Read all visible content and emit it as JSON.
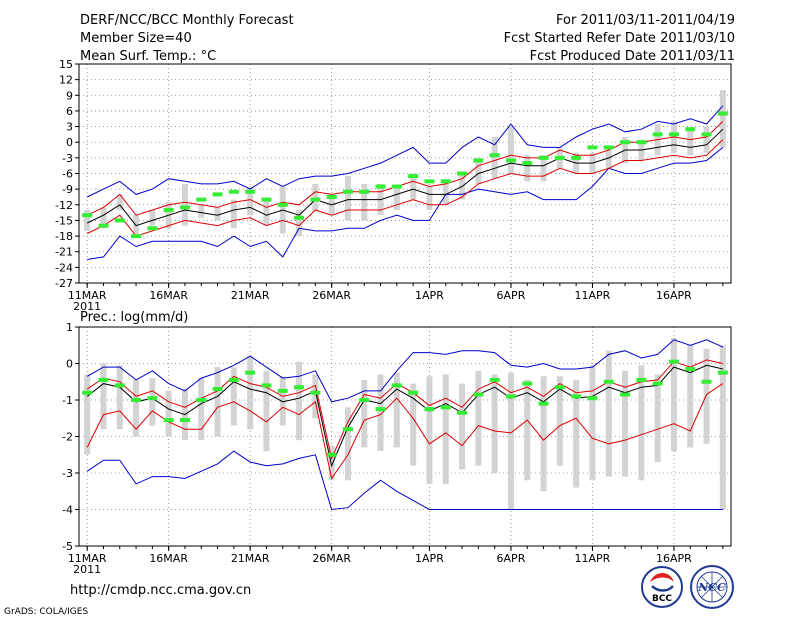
{
  "header": {
    "title": "DERF/NCC/BCC Monthly Forecast",
    "member_size": "Member Size=40",
    "variable": "Mean Surf. Temp.: °C",
    "forecast_range": "For 2011/03/11-2011/04/19",
    "start_date": "Fcst Started Refer Date 2011/03/10",
    "produced_date": "Fcst Produced Date 2011/03/11"
  },
  "footer": {
    "url": "http://cmdp.ncc.cma.gov.cn",
    "credit": "GrADS: COLA/IGES",
    "logo_bcc": "BCC",
    "logo_ncc": "NCC"
  },
  "colors": {
    "mean": "#000000",
    "inner_band": "#dd0000",
    "outer_band": "#0000cc",
    "bar": "#d3d3d3",
    "marker": "#33ee33"
  },
  "chart_data": [
    {
      "type": "bar",
      "title": "Mean Surf. Temp.: °C",
      "x_tick_labels": [
        "11MAR",
        "16MAR",
        "21MAR",
        "26MAR",
        "1APR",
        "6APR",
        "11APR",
        "16APR"
      ],
      "x_tick_days": [
        1,
        6,
        11,
        16,
        22,
        27,
        32,
        37
      ],
      "x_sublabel": "2011",
      "ylim": [
        -27,
        15
      ],
      "y_ticks": [
        -27,
        -24,
        -21,
        -18,
        -15,
        -12,
        -9,
        -6,
        -3,
        0,
        3,
        6,
        9,
        12,
        15
      ],
      "xlim": [
        0.5,
        40.5
      ],
      "days": [
        1,
        2,
        3,
        4,
        5,
        6,
        7,
        8,
        9,
        10,
        11,
        12,
        13,
        14,
        15,
        16,
        17,
        18,
        19,
        20,
        21,
        22,
        23,
        24,
        25,
        26,
        27,
        28,
        29,
        30,
        31,
        32,
        33,
        34,
        35,
        36,
        37,
        38,
        39,
        40
      ],
      "series": [
        {
          "name": "ensemble_mean",
          "style": "line",
          "values": [
            -15.5,
            -14,
            -12,
            -16,
            -15,
            -14,
            -13,
            -13.5,
            -14,
            -13,
            -12.5,
            -14,
            -13,
            -14,
            -11,
            -12,
            -11,
            -11,
            -11,
            -10,
            -9,
            -10,
            -10,
            -8.5,
            -6,
            -5,
            -4,
            -4.5,
            -4.5,
            -3,
            -4,
            -4,
            -3,
            -1.5,
            -1.5,
            -1,
            -0.5,
            -1,
            -0.5,
            2.5
          ]
        },
        {
          "name": "upper_inner",
          "style": "line",
          "values": [
            -14,
            -12.5,
            -10,
            -14,
            -13,
            -12,
            -11.5,
            -12,
            -12.5,
            -11.5,
            -11,
            -12.5,
            -11.5,
            -12,
            -9.5,
            -10,
            -9.5,
            -9.5,
            -9.5,
            -8.5,
            -7.5,
            -8.5,
            -8,
            -7,
            -4.5,
            -3.5,
            -2.5,
            -3,
            -3,
            -1.5,
            -2.5,
            -2.5,
            -1.5,
            0,
            0,
            0.5,
            1,
            0.5,
            1,
            4
          ]
        },
        {
          "name": "lower_inner",
          "style": "line",
          "values": [
            -17.5,
            -16,
            -14,
            -18,
            -17,
            -16,
            -15,
            -15.5,
            -16,
            -15,
            -14.5,
            -16,
            -15,
            -16,
            -13,
            -14,
            -13,
            -13,
            -13,
            -12,
            -11,
            -12,
            -12,
            -10.5,
            -8,
            -7,
            -6,
            -6.5,
            -6.5,
            -5,
            -6,
            -6,
            -5,
            -3.5,
            -3.5,
            -3,
            -2.5,
            -3,
            -2.5,
            0.5
          ]
        },
        {
          "name": "upper_outer",
          "style": "line",
          "values": [
            -10.5,
            -9,
            -7.5,
            -10,
            -9,
            -7,
            -7.5,
            -8,
            -8,
            -7.5,
            -9,
            -7,
            -8.5,
            -7,
            -6.5,
            -6.5,
            -6,
            -5,
            -4,
            -2.5,
            -1,
            -4,
            -4,
            -1,
            1,
            -0.5,
            3.5,
            -0.5,
            -1,
            -1,
            1,
            2.5,
            3.5,
            2,
            2.5,
            4,
            3.5,
            4.5,
            3.5,
            7
          ]
        },
        {
          "name": "lower_outer",
          "style": "line",
          "values": [
            -22.5,
            -22,
            -18,
            -20,
            -19,
            -19,
            -19,
            -19,
            -20,
            -18,
            -20,
            -19,
            -22,
            -16.5,
            -17,
            -17,
            -16.5,
            -16.5,
            -15,
            -14,
            -15,
            -15,
            -10,
            -10,
            -9,
            -9.5,
            -10,
            -9.5,
            -11,
            -11,
            -11,
            -8.5,
            -5,
            -6,
            -6,
            -5,
            -4,
            -4,
            -3.5,
            -1
          ],
          "color_note": "blue"
        },
        {
          "name": "range_bar_top",
          "style": "bar",
          "values": [
            -13,
            -12.5,
            -10,
            -14,
            -13,
            -11.5,
            -8,
            -12,
            -12.5,
            -11,
            -8.5,
            -11,
            -8.5,
            -13,
            -8,
            -10,
            -6.5,
            -8,
            -8,
            -8.5,
            -6,
            -8.5,
            -8,
            -6,
            -3,
            1,
            3,
            -2.5,
            -2.5,
            -1,
            -2,
            -2,
            -1.5,
            1,
            0.5,
            3.5,
            4,
            2.5,
            3,
            10
          ]
        },
        {
          "name": "range_bar_bottom",
          "style": "bar",
          "values": [
            -17,
            -16.5,
            -13,
            -18,
            -16,
            -16.5,
            -16,
            -14.5,
            -15,
            -16.5,
            -14,
            -16,
            -17.5,
            -18,
            -13,
            -14,
            -15,
            -15,
            -14,
            -13,
            -11,
            -13,
            -12,
            -11,
            -8,
            -7,
            -6,
            -7.5,
            -7.5,
            -5,
            -6,
            -6,
            -5,
            -4,
            -3.5,
            -2.5,
            -2,
            -2.5,
            -2,
            -1
          ]
        },
        {
          "name": "marker",
          "style": "dash",
          "values": [
            -14,
            -16,
            -15,
            -18,
            -16.5,
            -13,
            -12.5,
            -11,
            -10,
            -9.5,
            -9.5,
            -11,
            -12,
            -14.5,
            -11,
            -10.5,
            -9.5,
            -9.5,
            -8.5,
            -8.5,
            -6.5,
            -7.5,
            -7.5,
            -6,
            -3.5,
            -2.5,
            -3.5,
            -4,
            -3,
            -3,
            -3,
            -1,
            -1,
            0,
            0,
            1.5,
            1.5,
            2.5,
            1.5,
            5.5
          ]
        }
      ]
    },
    {
      "type": "bar",
      "title": "Prec.: log(mm/d)",
      "x_tick_labels": [
        "11MAR",
        "16MAR",
        "21MAR",
        "26MAR",
        "1APR",
        "6APR",
        "11APR",
        "16APR"
      ],
      "x_tick_days": [
        1,
        6,
        11,
        16,
        22,
        27,
        32,
        37
      ],
      "x_sublabel": "2011",
      "ylim": [
        -5,
        1
      ],
      "y_ticks": [
        -5,
        -4,
        -3,
        -2,
        -1,
        0,
        1
      ],
      "xlim": [
        0.5,
        40.5
      ],
      "days": [
        1,
        2,
        3,
        4,
        5,
        6,
        7,
        8,
        9,
        10,
        11,
        12,
        13,
        14,
        15,
        16,
        17,
        18,
        19,
        20,
        21,
        22,
        23,
        24,
        25,
        26,
        27,
        28,
        29,
        30,
        31,
        32,
        33,
        34,
        35,
        36,
        37,
        38,
        39,
        40
      ],
      "series": [
        {
          "name": "ensemble_mean",
          "style": "line",
          "values": [
            -0.9,
            -0.55,
            -0.65,
            -1.05,
            -0.95,
            -1.25,
            -1.4,
            -1.1,
            -0.9,
            -0.5,
            -0.7,
            -0.8,
            -1.05,
            -0.95,
            -0.75,
            -2.8,
            -1.75,
            -1,
            -1.1,
            -0.7,
            -0.95,
            -1.3,
            -1.1,
            -1.35,
            -0.85,
            -0.65,
            -0.95,
            -0.8,
            -1.05,
            -0.7,
            -0.95,
            -0.9,
            -0.65,
            -0.8,
            -0.65,
            -0.6,
            -0.1,
            -0.25,
            -0.05,
            -0.15
          ]
        },
        {
          "name": "upper_inner",
          "style": "line",
          "values": [
            -0.7,
            -0.4,
            -0.5,
            -0.9,
            -0.75,
            -1.05,
            -1.2,
            -0.95,
            -0.75,
            -0.35,
            -0.55,
            -0.65,
            -0.9,
            -0.8,
            -0.6,
            -2.6,
            -1.6,
            -0.85,
            -0.95,
            -0.55,
            -0.8,
            -1.15,
            -0.95,
            -1.2,
            -0.7,
            -0.5,
            -0.8,
            -0.65,
            -0.9,
            -0.55,
            -0.8,
            -0.75,
            -0.5,
            -0.65,
            -0.5,
            -0.45,
            0.05,
            -0.1,
            0.1,
            0
          ]
        },
        {
          "name": "lower_inner",
          "style": "line",
          "values": [
            -2.3,
            -1.4,
            -1.3,
            -1.8,
            -1.3,
            -1.6,
            -1.8,
            -1.8,
            -1.2,
            -1.05,
            -1.3,
            -1.6,
            -1.2,
            -1.4,
            -1.05,
            -3.15,
            -2.5,
            -1.55,
            -1.4,
            -0.95,
            -1.5,
            -2.2,
            -1.9,
            -2.25,
            -1.7,
            -1.85,
            -1.9,
            -1.55,
            -2.1,
            -1.7,
            -1.5,
            -2.05,
            -2.2,
            -2.1,
            -1.95,
            -1.8,
            -1.65,
            -1.85,
            -0.85,
            -0.55
          ]
        },
        {
          "name": "upper_outer",
          "style": "line",
          "values": [
            -0.35,
            -0.1,
            -0.1,
            -0.45,
            -0.2,
            -0.55,
            -0.75,
            -0.4,
            -0.25,
            -0.05,
            0.2,
            -0.1,
            -0.4,
            -0.35,
            -0.2,
            -1.05,
            -0.95,
            -0.75,
            -0.75,
            -0.2,
            0.3,
            0.3,
            0.25,
            0.35,
            0.35,
            0.3,
            -0.05,
            -0.1,
            0,
            -0.15,
            -0.15,
            -0.1,
            0.25,
            0.35,
            0.15,
            0.25,
            0.65,
            0.5,
            0.65,
            0.45
          ]
        },
        {
          "name": "lower_outer",
          "style": "line",
          "values": [
            -2.95,
            -2.65,
            -2.65,
            -3.3,
            -3.1,
            -3.1,
            -3.15,
            -2.95,
            -2.75,
            -2.4,
            -2.7,
            -2.8,
            -2.75,
            -2.6,
            -2.5,
            -4,
            -3.95,
            -3.55,
            -3.2,
            -3.5,
            -3.75,
            -4,
            -4,
            -4,
            -4,
            -4,
            -4,
            -4,
            -4,
            -4,
            -4,
            -4,
            -4,
            -4,
            -4,
            -4,
            -4,
            -4,
            -4,
            -4
          ]
        },
        {
          "name": "range_bar_top",
          "style": "bar",
          "values": [
            -0.3,
            0,
            -0.05,
            -0.45,
            -0.4,
            -0.75,
            -0.7,
            -0.4,
            -0.1,
            -0.1,
            0.2,
            -0.2,
            -0.35,
            0.05,
            -0.3,
            -2.25,
            -1.2,
            -0.45,
            -0.3,
            -0.25,
            -0.55,
            -0.35,
            -0.3,
            -0.55,
            -0.2,
            -0.3,
            -0.25,
            -0.45,
            -0.35,
            -0.35,
            -0.45,
            -0.05,
            0.35,
            -0.2,
            -0.05,
            -0.3,
            0.7,
            0.5,
            0.4,
            0.5
          ]
        },
        {
          "name": "range_bar_bottom",
          "style": "bar",
          "values": [
            -2.5,
            -1.8,
            -1.8,
            -2,
            -1.7,
            -2,
            -2.1,
            -2.1,
            -2,
            -1.7,
            -1.8,
            -2.4,
            -1.7,
            -2.1,
            -1.5,
            -3.2,
            -3.2,
            -2.3,
            -2.4,
            -2.3,
            -2.8,
            -3.3,
            -3.3,
            -2.9,
            -2.8,
            -3,
            -4,
            -3.2,
            -3.5,
            -2.8,
            -3.4,
            -3.2,
            -3.1,
            -3.1,
            -3.2,
            -2.7,
            -2.4,
            -2.3,
            -2.2,
            -4
          ]
        },
        {
          "name": "marker",
          "style": "dash",
          "values": [
            -0.8,
            -0.45,
            -0.6,
            -1,
            -0.95,
            -1.55,
            -1.55,
            -1,
            -0.7,
            -0.45,
            -0.25,
            -0.6,
            -0.75,
            -0.65,
            -0.8,
            -2.5,
            -1.8,
            -1,
            -1.25,
            -0.6,
            -0.8,
            -1.25,
            -1.2,
            -1.35,
            -0.85,
            -0.45,
            -0.9,
            -0.55,
            -1.1,
            -0.65,
            -0.9,
            -0.95,
            -0.5,
            -0.85,
            -0.45,
            -0.55,
            0.05,
            -0.15,
            -0.5,
            -0.25
          ]
        }
      ]
    }
  ]
}
